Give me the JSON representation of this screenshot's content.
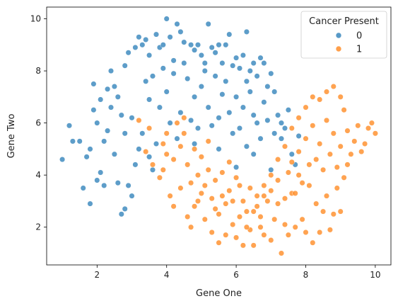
{
  "chart_data": {
    "type": "scatter",
    "title": "",
    "xlabel": "Gene One",
    "ylabel": "Gene Two",
    "xlim": [
      0.55,
      10.45
    ],
    "ylim": [
      0.55,
      10.45
    ],
    "xticks": [
      "2",
      "4",
      "6",
      "8",
      "10"
    ],
    "yticks": [
      "2",
      "4",
      "6",
      "8",
      "10"
    ],
    "grid": false,
    "legend": {
      "title": "Cancer Present",
      "placement": "top-right",
      "entries": [
        "0",
        "1"
      ]
    },
    "series": [
      {
        "name": "0",
        "color": "#1f77b4",
        "points": [
          [
            1.0,
            4.6
          ],
          [
            1.2,
            5.9
          ],
          [
            1.3,
            5.3
          ],
          [
            1.5,
            5.3
          ],
          [
            1.6,
            3.5
          ],
          [
            1.7,
            4.7
          ],
          [
            1.8,
            2.9
          ],
          [
            1.9,
            7.5
          ],
          [
            1.8,
            5.0
          ],
          [
            1.9,
            6.5
          ],
          [
            2.0,
            3.8
          ],
          [
            2.1,
            4.1
          ],
          [
            2.1,
            6.9
          ],
          [
            2.2,
            3.6
          ],
          [
            2.3,
            7.3
          ],
          [
            2.4,
            8.0
          ],
          [
            2.5,
            7.4
          ],
          [
            2.6,
            3.7
          ],
          [
            2.7,
            2.5
          ],
          [
            2.8,
            2.7
          ],
          [
            2.8,
            8.2
          ],
          [
            2.9,
            8.7
          ],
          [
            3.0,
            3.2
          ],
          [
            3.1,
            8.9
          ],
          [
            3.2,
            9.3
          ],
          [
            3.3,
            9.0
          ],
          [
            3.4,
            9.2
          ],
          [
            3.5,
            8.6
          ],
          [
            3.6,
            4.2
          ],
          [
            3.7,
            9.4
          ],
          [
            3.8,
            8.9
          ],
          [
            3.9,
            9.0
          ],
          [
            4.0,
            10.0
          ],
          [
            4.1,
            9.3
          ],
          [
            4.2,
            8.4
          ],
          [
            4.3,
            9.8
          ],
          [
            4.4,
            9.5
          ],
          [
            4.5,
            9.1
          ],
          [
            4.7,
            9.0
          ],
          [
            4.8,
            8.8
          ],
          [
            4.9,
            9.0
          ],
          [
            5.0,
            8.6
          ],
          [
            5.1,
            8.3
          ],
          [
            5.2,
            9.8
          ],
          [
            5.3,
            8.9
          ],
          [
            5.4,
            8.7
          ],
          [
            5.5,
            9.0
          ],
          [
            5.6,
            8.3
          ],
          [
            5.7,
            9.0
          ],
          [
            5.8,
            9.4
          ],
          [
            5.9,
            8.2
          ],
          [
            6.0,
            8.5
          ],
          [
            6.1,
            8.1
          ],
          [
            6.2,
            8.6
          ],
          [
            6.3,
            9.5
          ],
          [
            6.4,
            8.0
          ],
          [
            6.5,
            8.3
          ],
          [
            6.6,
            7.8
          ],
          [
            6.7,
            8.5
          ],
          [
            6.8,
            8.3
          ],
          [
            6.9,
            7.4
          ],
          [
            7.0,
            7.9
          ],
          [
            7.1,
            7.2
          ],
          [
            7.2,
            6.3
          ],
          [
            7.3,
            6.0
          ],
          [
            7.3,
            5.4
          ],
          [
            7.4,
            5.8
          ],
          [
            7.5,
            6.5
          ],
          [
            7.6,
            4.8
          ],
          [
            7.7,
            4.4
          ],
          [
            7.8,
            5.5
          ],
          [
            7.0,
            4.2
          ],
          [
            6.5,
            4.8
          ],
          [
            6.0,
            4.3
          ],
          [
            2.5,
            4.8
          ],
          [
            2.2,
            5.3
          ],
          [
            2.0,
            6.0
          ],
          [
            2.4,
            6.6
          ],
          [
            2.6,
            7.0
          ],
          [
            2.8,
            5.6
          ],
          [
            3.0,
            6.2
          ],
          [
            3.2,
            5.0
          ],
          [
            3.4,
            7.6
          ],
          [
            3.6,
            7.8
          ],
          [
            3.8,
            6.6
          ],
          [
            4.0,
            7.2
          ],
          [
            4.2,
            7.9
          ],
          [
            4.4,
            6.4
          ],
          [
            4.6,
            7.7
          ],
          [
            4.8,
            7.0
          ],
          [
            5.0,
            7.4
          ],
          [
            5.2,
            6.6
          ],
          [
            5.4,
            7.8
          ],
          [
            5.6,
            7.1
          ],
          [
            5.8,
            6.4
          ],
          [
            6.0,
            7.0
          ],
          [
            6.2,
            6.6
          ],
          [
            6.4,
            7.2
          ],
          [
            6.6,
            6.0
          ],
          [
            6.8,
            6.8
          ],
          [
            3.1,
            4.4
          ],
          [
            2.9,
            3.6
          ],
          [
            3.3,
            5.6
          ],
          [
            3.5,
            6.9
          ],
          [
            3.7,
            5.2
          ],
          [
            3.9,
            8.1
          ],
          [
            4.1,
            6.0
          ],
          [
            4.3,
            5.4
          ],
          [
            4.5,
            8.3
          ],
          [
            4.7,
            6.1
          ],
          [
            4.9,
            5.8
          ],
          [
            5.1,
            8.0
          ],
          [
            5.3,
            5.9
          ],
          [
            5.5,
            6.2
          ],
          [
            5.7,
            7.6
          ],
          [
            5.9,
            5.6
          ],
          [
            6.1,
            5.8
          ],
          [
            6.3,
            7.6
          ],
          [
            6.5,
            6.3
          ],
          [
            6.7,
            5.4
          ],
          [
            6.9,
            6.1
          ],
          [
            7.1,
            5.6
          ],
          [
            2.3,
            5.7
          ],
          [
            2.7,
            6.3
          ],
          [
            3.5,
            4.7
          ],
          [
            4.8,
            5.2
          ],
          [
            5.5,
            5.0
          ],
          [
            6.3,
            5.1
          ]
        ]
      },
      {
        "name": "1",
        "color": "#ff7f0e",
        "points": [
          [
            3.2,
            6.1
          ],
          [
            3.4,
            4.9
          ],
          [
            3.5,
            5.8
          ],
          [
            3.6,
            4.4
          ],
          [
            3.8,
            3.9
          ],
          [
            3.9,
            4.2
          ],
          [
            4.0,
            5.6
          ],
          [
            4.1,
            3.2
          ],
          [
            4.2,
            2.8
          ],
          [
            4.3,
            6.0
          ],
          [
            4.4,
            3.5
          ],
          [
            4.5,
            6.2
          ],
          [
            4.6,
            2.4
          ],
          [
            4.7,
            2.0
          ],
          [
            4.8,
            2.8
          ],
          [
            4.9,
            4.0
          ],
          [
            5.0,
            3.3
          ],
          [
            5.1,
            2.3
          ],
          [
            5.2,
            5.3
          ],
          [
            5.3,
            1.8
          ],
          [
            5.4,
            2.7
          ],
          [
            5.5,
            1.4
          ],
          [
            5.6,
            3.2
          ],
          [
            5.7,
            1.7
          ],
          [
            5.8,
            4.5
          ],
          [
            5.9,
            2.1
          ],
          [
            6.0,
            1.6
          ],
          [
            6.1,
            3.6
          ],
          [
            6.2,
            1.3
          ],
          [
            6.3,
            2.6
          ],
          [
            6.4,
            1.9
          ],
          [
            6.5,
            1.3
          ],
          [
            6.6,
            3.2
          ],
          [
            6.7,
            2.4
          ],
          [
            6.8,
            1.7
          ],
          [
            6.9,
            3.0
          ],
          [
            7.0,
            1.5
          ],
          [
            7.1,
            2.3
          ],
          [
            7.2,
            2.9
          ],
          [
            7.3,
            1.0
          ],
          [
            7.4,
            2.1
          ],
          [
            7.5,
            1.7
          ],
          [
            7.6,
            3.3
          ],
          [
            7.7,
            2.0
          ],
          [
            7.8,
            4.0
          ],
          [
            7.9,
            2.3
          ],
          [
            8.0,
            1.8
          ],
          [
            8.1,
            3.6
          ],
          [
            8.2,
            1.4
          ],
          [
            8.3,
            2.9
          ],
          [
            8.4,
            1.8
          ],
          [
            8.5,
            2.6
          ],
          [
            8.6,
            3.2
          ],
          [
            8.7,
            1.9
          ],
          [
            8.8,
            2.5
          ],
          [
            8.9,
            3.5
          ],
          [
            9.0,
            2.6
          ],
          [
            9.1,
            3.9
          ],
          [
            9.2,
            4.4
          ],
          [
            9.3,
            4.8
          ],
          [
            9.4,
            5.3
          ],
          [
            9.5,
            5.9
          ],
          [
            9.6,
            4.9
          ],
          [
            9.7,
            5.2
          ],
          [
            9.8,
            5.8
          ],
          [
            9.9,
            6.0
          ],
          [
            10.0,
            5.6
          ],
          [
            9.1,
            6.5
          ],
          [
            9.0,
            7.0
          ],
          [
            8.8,
            7.4
          ],
          [
            8.6,
            7.2
          ],
          [
            8.4,
            6.9
          ],
          [
            8.2,
            7.0
          ],
          [
            8.0,
            6.6
          ],
          [
            7.8,
            6.2
          ],
          [
            7.6,
            5.8
          ],
          [
            7.4,
            5.1
          ],
          [
            7.2,
            4.6
          ],
          [
            7.0,
            4.0
          ],
          [
            6.8,
            3.6
          ],
          [
            4.6,
            4.4
          ],
          [
            4.8,
            5.0
          ],
          [
            5.0,
            4.7
          ],
          [
            5.2,
            4.2
          ],
          [
            5.4,
            3.8
          ],
          [
            5.6,
            4.1
          ],
          [
            5.8,
            3.4
          ],
          [
            6.0,
            3.9
          ],
          [
            6.2,
            3.0
          ],
          [
            6.4,
            3.5
          ],
          [
            6.6,
            2.8
          ],
          [
            6.8,
            3.2
          ],
          [
            7.0,
            3.4
          ],
          [
            7.2,
            3.8
          ],
          [
            7.4,
            3.1
          ],
          [
            7.6,
            4.5
          ],
          [
            7.8,
            4.9
          ],
          [
            8.0,
            5.4
          ],
          [
            8.2,
            5.9
          ],
          [
            8.4,
            5.2
          ],
          [
            8.6,
            6.1
          ],
          [
            8.8,
            5.6
          ],
          [
            9.0,
            5.1
          ],
          [
            9.2,
            5.7
          ],
          [
            8.3,
            4.6
          ],
          [
            8.5,
            4.2
          ],
          [
            8.7,
            4.8
          ],
          [
            8.9,
            4.3
          ],
          [
            8.1,
            4.4
          ],
          [
            7.9,
            3.7
          ],
          [
            7.7,
            3.3
          ],
          [
            7.5,
            4.1
          ],
          [
            4.4,
            5.1
          ],
          [
            4.2,
            4.6
          ],
          [
            4.0,
            4.8
          ],
          [
            3.9,
            5.2
          ],
          [
            4.5,
            5.6
          ],
          [
            4.7,
            3.7
          ],
          [
            4.9,
            3.0
          ],
          [
            5.1,
            3.6
          ],
          [
            5.3,
            3.1
          ],
          [
            5.5,
            2.5
          ],
          [
            5.7,
            2.9
          ],
          [
            5.9,
            3.0
          ],
          [
            6.1,
            2.4
          ],
          [
            6.3,
            2.0
          ],
          [
            6.5,
            2.6
          ],
          [
            6.7,
            2.0
          ]
        ]
      }
    ]
  }
}
